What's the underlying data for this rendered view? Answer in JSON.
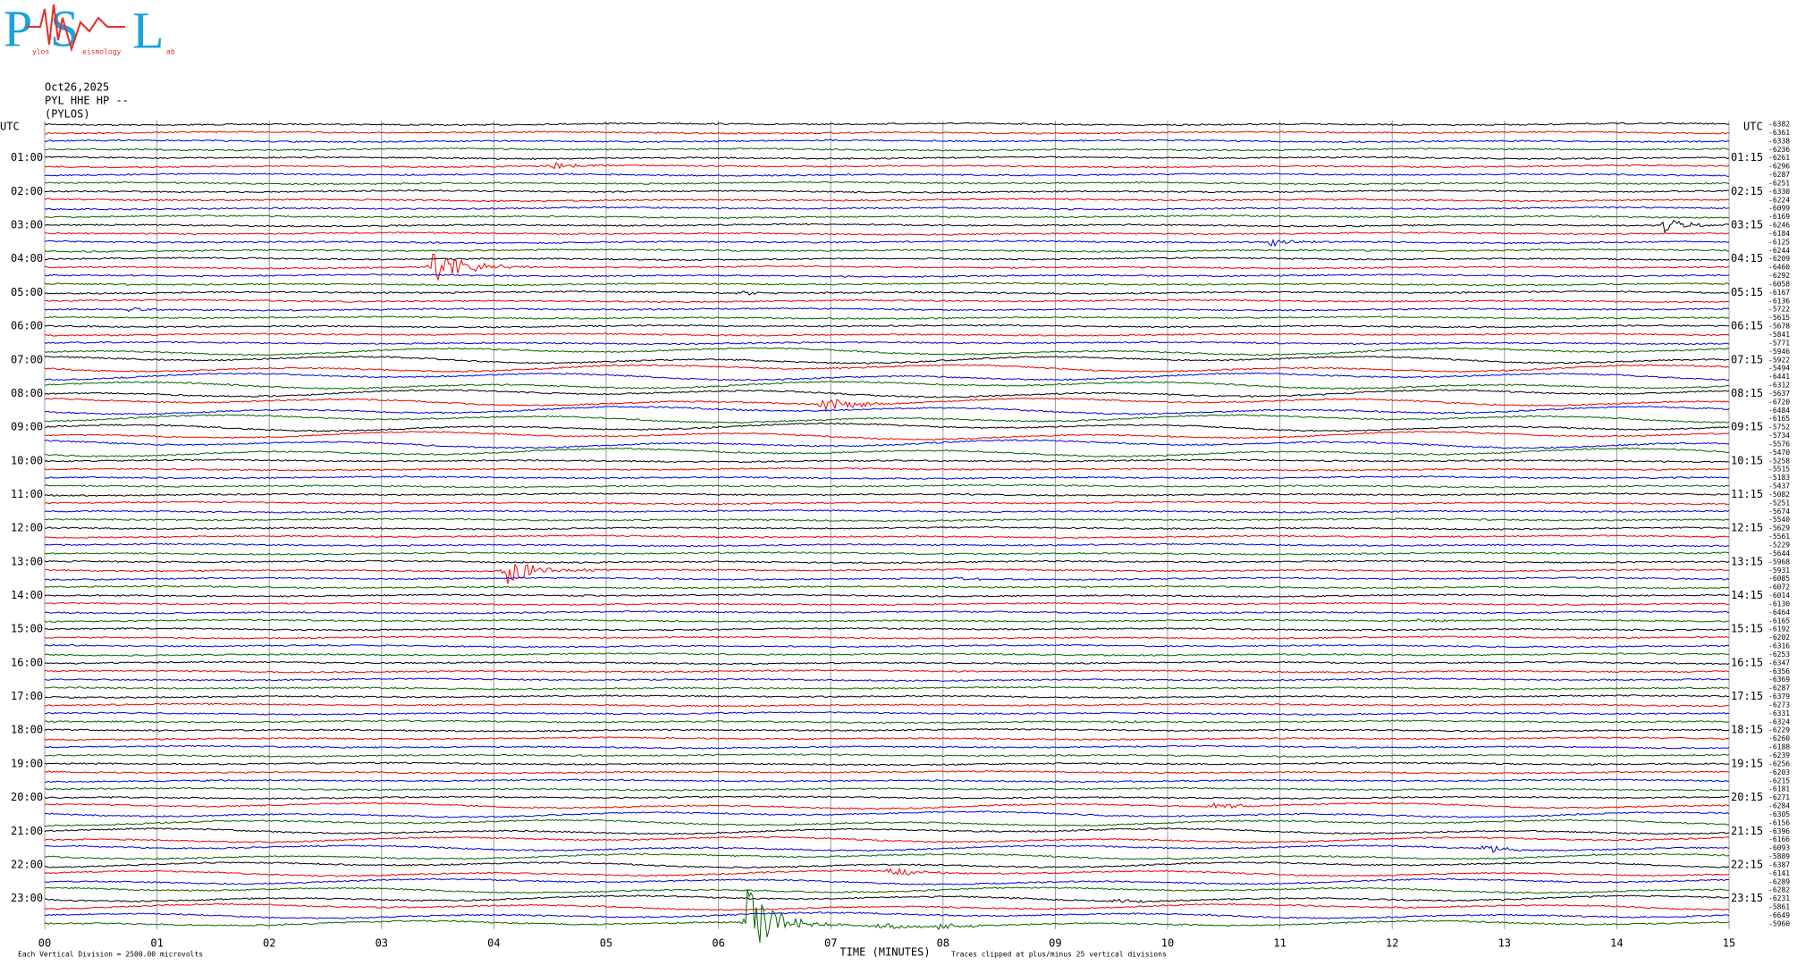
{
  "logo": {
    "letters": [
      "P",
      "S",
      "L"
    ],
    "words": [
      "ylos",
      "eismology",
      "ab"
    ]
  },
  "header": {
    "date": "Oct26,2025",
    "channel": "PYL HHE HP --",
    "station": "(PYLOS)"
  },
  "left_axis": {
    "title": "UTC",
    "labels": [
      "01:00",
      "02:00",
      "03:00",
      "04:00",
      "05:00",
      "06:00",
      "07:00",
      "08:00",
      "09:00",
      "10:00",
      "11:00",
      "12:00",
      "13:00",
      "14:00",
      "15:00",
      "16:00",
      "17:00",
      "18:00",
      "19:00",
      "20:00",
      "21:00",
      "22:00",
      "23:00"
    ]
  },
  "right_axis": {
    "title": "UTC",
    "labels": [
      "01:15",
      "02:15",
      "03:15",
      "04:15",
      "05:15",
      "06:15",
      "07:15",
      "08:15",
      "09:15",
      "10:15",
      "11:15",
      "12:15",
      "13:15",
      "14:15",
      "15:15",
      "16:15",
      "17:15",
      "18:15",
      "19:15",
      "20:15",
      "21:15",
      "22:15",
      "23:15"
    ]
  },
  "trace_offsets": [
    -6382,
    -6361,
    -6338,
    -6236,
    -6261,
    -6296,
    -6287,
    -6251,
    -6330,
    -6224,
    -6099,
    -6169,
    -6246,
    -6184,
    -6125,
    -6244,
    -6209,
    -6460,
    -6292,
    -6058,
    -6167,
    -6136,
    -5722,
    -5615,
    -5678,
    -5841,
    -5771,
    -5946,
    -5922,
    -5494,
    -6441,
    -6312,
    -5637,
    -6720,
    -6484,
    -6165,
    -5752,
    -5734,
    -5576,
    -5470,
    -5258,
    -5515,
    -5183,
    -5437,
    -5082,
    -5251,
    -5674,
    -5540,
    -5629,
    -5561,
    -5229,
    -5644,
    -5968,
    -5931,
    -6085,
    -6072,
    -6014,
    -6130,
    -6464,
    -6165,
    -6192,
    -6202,
    -6316,
    -6253,
    -6347,
    -6356,
    -6369,
    -6287,
    -6379,
    -6273,
    -6331,
    -6324,
    -6229,
    -6260,
    -6188,
    -6239,
    -6256,
    -6203,
    -6215,
    -6181,
    -6271,
    -6284,
    -6305,
    -6156,
    -6396,
    -6166,
    -6093,
    -5889,
    -6387,
    -6141,
    -6289,
    -6282,
    -6231,
    -5861,
    -6649,
    -5960
  ],
  "x_axis": {
    "labels": [
      "00",
      "01",
      "02",
      "03",
      "04",
      "05",
      "06",
      "07",
      "08",
      "09",
      "10",
      "11",
      "12",
      "13",
      "14",
      "15"
    ],
    "title": "TIME (MINUTES)"
  },
  "footer": {
    "scale_note": "Each Vertical Division = 2500.00 microvolts",
    "clip_note": "Traces clipped at plus/minus 25 vertical divisions"
  }
}
